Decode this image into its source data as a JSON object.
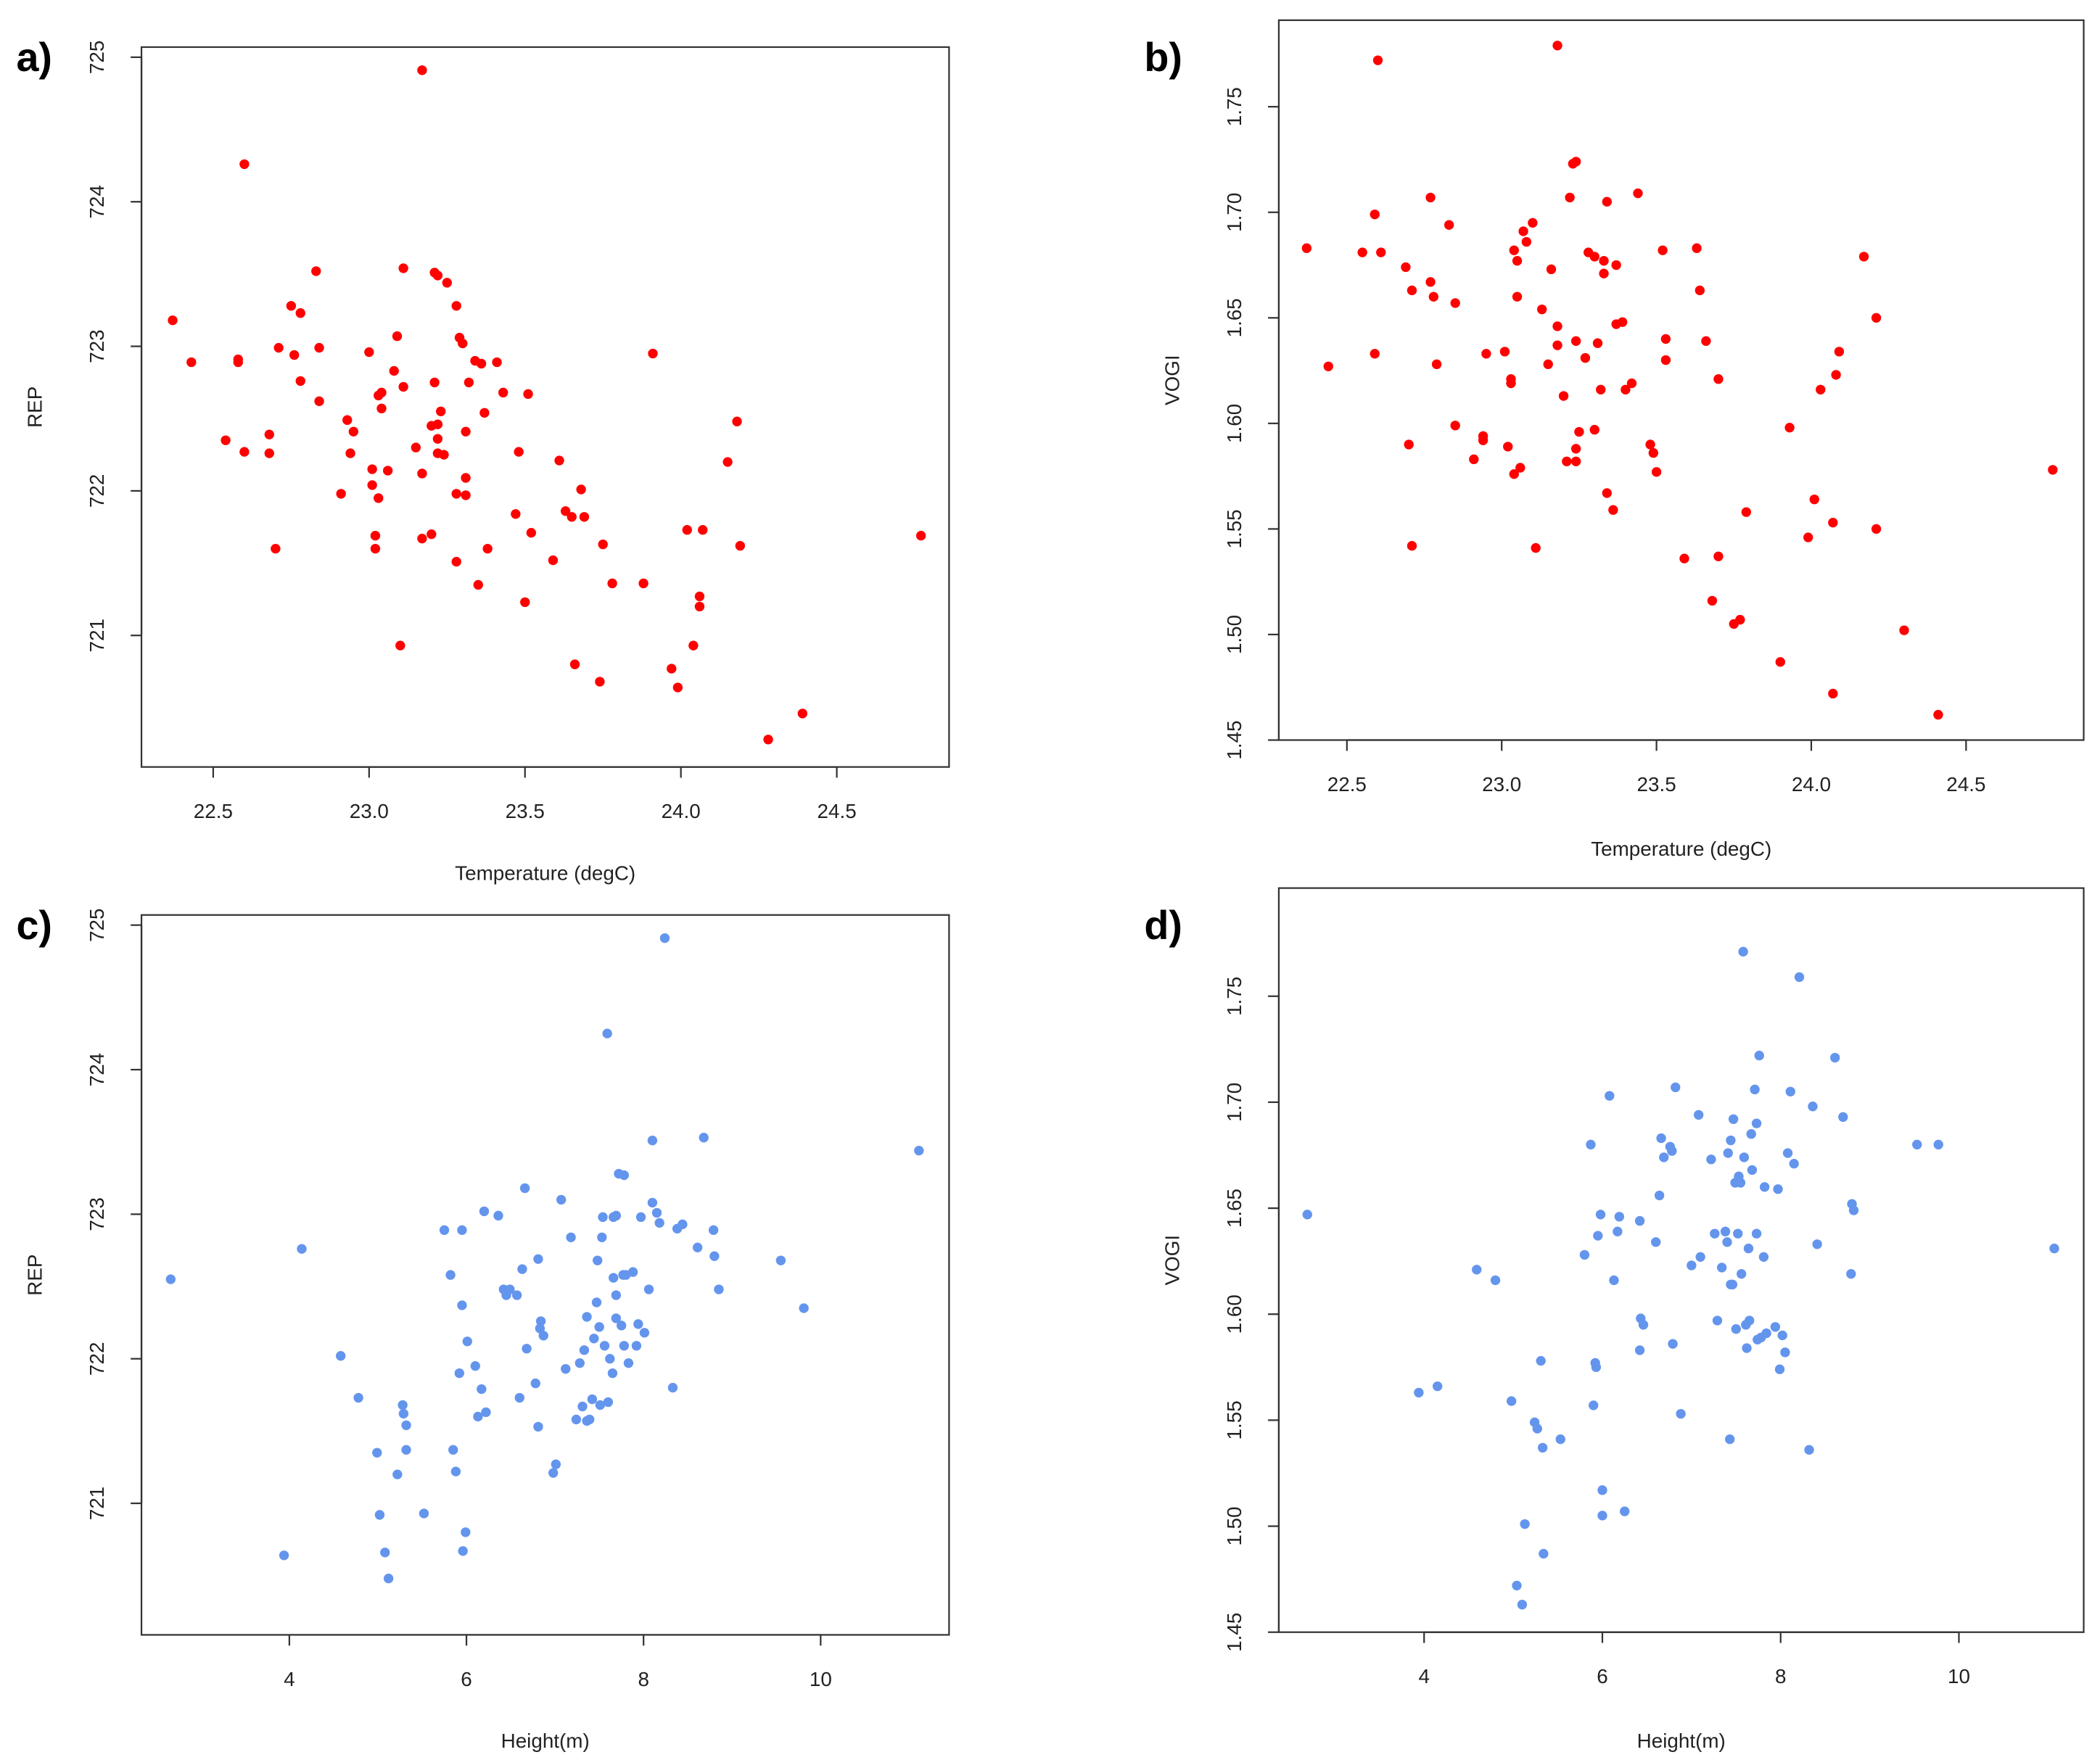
{
  "chart_data": [
    {
      "type": "scatter",
      "panel_label": "a)",
      "xlabel": "Temperature (degC)",
      "ylabel": "REP",
      "color": "#ff0000",
      "xlim": [
        22.27,
        24.86
      ],
      "ylim": [
        720.09,
        725.07
      ],
      "xticks": [
        22.5,
        {
          "value": 23,
          "label": "23.0"
        },
        23.5,
        {
          "value": 24,
          "label": "24.0"
        },
        24.5
      ],
      "yticks": [
        721,
        722,
        723,
        724,
        725
      ],
      "x": [
        22.37,
        22.43,
        22.54,
        22.58,
        22.58,
        22.6,
        22.6,
        22.68,
        22.68,
        22.71,
        22.7,
        22.75,
        22.76,
        22.78,
        22.78,
        22.83,
        22.84,
        22.84,
        22.91,
        22.93,
        22.95,
        22.94,
        23.0,
        23.01,
        23.01,
        23.02,
        23.02,
        23.03,
        23.03,
        23.04,
        23.04,
        23.06,
        23.08,
        23.09,
        23.1,
        23.11,
        23.11,
        23.15,
        23.17,
        23.17,
        23.17,
        23.2,
        23.2,
        23.21,
        23.21,
        23.22,
        23.22,
        23.22,
        23.22,
        23.23,
        23.24,
        23.25,
        23.28,
        23.28,
        23.28,
        23.29,
        23.3,
        23.31,
        23.31,
        23.31,
        23.32,
        23.34,
        23.35,
        23.36,
        23.37,
        23.38,
        23.41,
        23.43,
        23.48,
        23.47,
        23.5,
        23.51,
        23.52,
        23.59,
        23.61,
        23.63,
        23.65,
        23.66,
        23.68,
        23.69,
        23.74,
        23.75,
        23.78,
        23.88,
        23.91,
        23.97,
        23.99,
        24.02,
        24.04,
        24.06,
        24.06,
        24.07,
        24.15,
        24.18,
        24.19,
        24.28,
        24.39,
        24.77
      ],
      "values": [
        723.18,
        722.89,
        722.35,
        722.91,
        722.89,
        724.26,
        722.27,
        722.39,
        722.26,
        722.99,
        721.6,
        723.28,
        722.94,
        722.76,
        723.23,
        723.52,
        722.99,
        722.62,
        721.98,
        722.49,
        722.41,
        722.26,
        722.96,
        722.15,
        722.04,
        721.69,
        721.6,
        722.66,
        721.95,
        722.68,
        722.57,
        722.14,
        722.83,
        723.07,
        720.93,
        722.72,
        723.54,
        722.3,
        722.12,
        721.67,
        724.91,
        722.45,
        721.7,
        722.75,
        723.51,
        722.46,
        723.49,
        722.36,
        722.26,
        722.55,
        722.25,
        723.44,
        723.28,
        721.51,
        721.98,
        723.06,
        723.02,
        722.09,
        722.41,
        721.97,
        722.75,
        722.9,
        721.35,
        722.88,
        722.54,
        721.6,
        722.89,
        722.68,
        722.27,
        721.84,
        721.23,
        722.67,
        721.71,
        721.52,
        722.21,
        721.86,
        721.82,
        720.8,
        722.01,
        721.82,
        720.68,
        721.63,
        721.36,
        721.36,
        722.95,
        720.77,
        720.64,
        721.73,
        720.93,
        721.2,
        721.27,
        721.73,
        722.2,
        722.48,
        721.62,
        720.28,
        720.46,
        721.69
      ]
    },
    {
      "type": "scatter",
      "panel_label": "b)",
      "xlabel": "Temperature (degC)",
      "ylabel": "VOGI",
      "color": "#ff0000",
      "xlim": [
        22.28,
        24.88
      ],
      "ylim": [
        1.45,
        1.791
      ],
      "xticks": [
        22.5,
        {
          "value": 23,
          "label": "23.0"
        },
        23.5,
        {
          "value": 24,
          "label": "24.0"
        },
        24.5
      ],
      "yticks": [
        1.45,
        {
          "value": 1.5,
          "label": "1.50"
        },
        1.55,
        {
          "value": 1.6,
          "label": "1.60"
        },
        1.65,
        {
          "value": 1.7,
          "label": "1.70"
        },
        1.75
      ],
      "x": [
        22.37,
        22.44,
        22.55,
        22.59,
        22.6,
        22.59,
        22.61,
        22.69,
        22.7,
        22.71,
        22.71,
        22.77,
        22.77,
        22.78,
        22.79,
        22.83,
        22.85,
        22.85,
        22.91,
        22.94,
        22.95,
        22.94,
        23.01,
        23.02,
        23.03,
        23.03,
        23.04,
        23.04,
        23.05,
        23.05,
        23.07,
        23.06,
        23.08,
        23.1,
        23.11,
        23.13,
        23.15,
        23.16,
        23.18,
        23.18,
        23.18,
        23.2,
        23.21,
        23.22,
        23.23,
        23.24,
        23.24,
        23.24,
        23.25,
        23.24,
        23.27,
        23.28,
        23.3,
        23.3,
        23.31,
        23.32,
        23.33,
        23.33,
        23.34,
        23.34,
        23.36,
        23.37,
        23.37,
        23.39,
        23.4,
        23.42,
        23.44,
        23.48,
        23.49,
        23.5,
        23.52,
        23.53,
        23.53,
        23.59,
        23.63,
        23.64,
        23.66,
        23.68,
        23.7,
        23.7,
        23.75,
        23.77,
        23.79,
        23.9,
        23.93,
        23.99,
        24.01,
        24.03,
        24.07,
        24.08,
        24.09,
        24.07,
        24.17,
        24.21,
        24.21,
        24.3,
        24.41,
        24.78
      ],
      "values": [
        1.683,
        1.627,
        1.681,
        1.699,
        1.772,
        1.633,
        1.681,
        1.674,
        1.59,
        1.542,
        1.663,
        1.707,
        1.667,
        1.66,
        1.628,
        1.694,
        1.657,
        1.599,
        1.583,
        1.594,
        1.633,
        1.592,
        1.634,
        1.589,
        1.621,
        1.619,
        1.576,
        1.682,
        1.66,
        1.677,
        1.691,
        1.579,
        1.686,
        1.695,
        1.541,
        1.654,
        1.628,
        1.673,
        1.646,
        1.779,
        1.637,
        1.613,
        1.582,
        1.707,
        1.723,
        1.724,
        1.582,
        1.639,
        1.596,
        1.588,
        1.631,
        1.681,
        1.597,
        1.679,
        1.638,
        1.616,
        1.677,
        1.671,
        1.705,
        1.567,
        1.559,
        1.647,
        1.675,
        1.648,
        1.616,
        1.619,
        1.709,
        1.59,
        1.586,
        1.577,
        1.682,
        1.63,
        1.64,
        1.536,
        1.683,
        1.663,
        1.639,
        1.516,
        1.621,
        1.537,
        1.505,
        1.507,
        1.558,
        1.487,
        1.598,
        1.546,
        1.564,
        1.616,
        1.553,
        1.623,
        1.634,
        1.472,
        1.679,
        1.65,
        1.55,
        1.502,
        1.462,
        1.578
      ]
    },
    {
      "type": "scatter",
      "panel_label": "c)",
      "xlabel": "Height(m)",
      "ylabel": "REP",
      "color": "#6495ed",
      "xlim": [
        2.33,
        11.45
      ],
      "ylim": [
        720.09,
        725.07
      ],
      "xticks": [
        4,
        6,
        8,
        10
      ],
      "yticks": [
        721,
        722,
        723,
        724,
        725
      ],
      "x": [
        2.66,
        3.94,
        4.14,
        4.58,
        4.78,
        4.99,
        5.02,
        5.08,
        5.12,
        5.22,
        5.28,
        5.29,
        5.32,
        5.32,
        5.52,
        5.75,
        5.82,
        5.85,
        5.88,
        5.92,
        5.95,
        5.96,
        5.99,
        5.95,
        6.01,
        6.1,
        6.13,
        6.17,
        6.2,
        6.22,
        6.36,
        6.42,
        6.45,
        6.49,
        6.57,
        6.6,
        6.63,
        6.66,
        6.68,
        6.78,
        6.81,
        6.81,
        6.84,
        6.83,
        6.87,
        6.98,
        7.01,
        7.07,
        7.12,
        7.18,
        7.24,
        7.28,
        7.31,
        7.33,
        7.36,
        7.36,
        7.39,
        7.42,
        7.44,
        7.47,
        7.48,
        7.5,
        7.51,
        7.53,
        7.54,
        7.56,
        7.59,
        7.6,
        7.62,
        7.65,
        7.66,
        7.66,
        7.69,
        7.69,
        7.69,
        7.72,
        7.75,
        7.77,
        7.78,
        7.78,
        7.8,
        7.83,
        7.88,
        7.92,
        7.94,
        7.97,
        8.01,
        8.06,
        8.1,
        8.1,
        8.15,
        8.18,
        8.24,
        8.33,
        8.38,
        8.44,
        8.61,
        8.68,
        8.79,
        8.8,
        8.85,
        9.55,
        9.81,
        11.11
      ],
      "values": [
        722.55,
        720.64,
        722.76,
        722.02,
        721.73,
        721.35,
        720.92,
        720.66,
        720.48,
        721.2,
        721.68,
        721.62,
        721.54,
        721.37,
        720.93,
        722.89,
        722.58,
        721.37,
        721.22,
        721.9,
        722.37,
        720.67,
        720.8,
        722.89,
        722.12,
        721.95,
        721.6,
        721.79,
        723.02,
        721.63,
        722.99,
        722.48,
        722.44,
        722.48,
        722.44,
        721.73,
        722.62,
        723.18,
        722.07,
        721.83,
        721.53,
        722.69,
        722.26,
        722.21,
        722.16,
        721.21,
        721.27,
        723.1,
        721.93,
        722.84,
        721.58,
        721.97,
        721.67,
        722.06,
        721.57,
        722.29,
        721.58,
        721.72,
        722.14,
        722.39,
        722.68,
        722.22,
        721.68,
        722.84,
        722.98,
        722.09,
        724.25,
        721.7,
        722.0,
        721.9,
        722.98,
        722.56,
        722.44,
        722.99,
        722.28,
        723.28,
        722.23,
        722.58,
        722.09,
        723.27,
        722.58,
        721.97,
        722.6,
        722.09,
        722.24,
        722.98,
        722.18,
        722.48,
        723.08,
        723.51,
        723.01,
        722.94,
        724.91,
        721.8,
        722.9,
        722.93,
        722.77,
        723.53,
        722.89,
        722.71,
        722.48,
        722.68,
        722.35,
        723.44
      ]
    },
    {
      "type": "scatter",
      "panel_label": "d)",
      "xlabel": "Height(m)",
      "ylabel": "VOGI",
      "color": "#6495ed",
      "xlim": [
        2.37,
        11.4
      ],
      "ylim": [
        1.45,
        1.801
      ],
      "xticks": [
        4,
        6,
        8,
        10
      ],
      "yticks": [
        1.45,
        {
          "value": 1.5,
          "label": "1.50"
        },
        1.55,
        {
          "value": 1.6,
          "label": "1.60"
        },
        1.65,
        {
          "value": 1.7,
          "label": "1.70"
        },
        1.75
      ],
      "x": [
        2.69,
        3.94,
        4.15,
        4.59,
        4.8,
        4.98,
        5.13,
        5.04,
        5.1,
        5.24,
        5.27,
        5.31,
        5.33,
        5.34,
        5.53,
        5.8,
        5.87,
        5.9,
        5.92,
        5.93,
        5.95,
        5.98,
        6.0,
        6.0,
        6.08,
        6.13,
        6.17,
        6.19,
        6.25,
        6.42,
        6.43,
        6.42,
        6.46,
        6.6,
        6.64,
        6.66,
        6.69,
        6.76,
        6.78,
        6.79,
        6.82,
        6.88,
        7.0,
        7.08,
        7.1,
        7.22,
        7.26,
        7.29,
        7.34,
        7.38,
        7.4,
        7.41,
        7.44,
        7.43,
        7.44,
        7.46,
        7.47,
        7.49,
        7.5,
        7.52,
        7.53,
        7.55,
        7.56,
        7.58,
        7.59,
        7.61,
        7.62,
        7.64,
        7.65,
        7.67,
        7.68,
        7.71,
        7.73,
        7.73,
        7.74,
        7.76,
        7.78,
        7.81,
        7.82,
        7.84,
        7.94,
        7.97,
        7.99,
        8.02,
        8.05,
        8.08,
        8.11,
        8.15,
        8.21,
        8.32,
        8.36,
        8.41,
        8.61,
        8.7,
        8.79,
        8.8,
        8.82,
        9.53,
        9.77,
        11.07
      ],
      "values": [
        1.647,
        1.563,
        1.566,
        1.621,
        1.616,
        1.559,
        1.501,
        1.472,
        1.463,
        1.549,
        1.546,
        1.578,
        1.537,
        1.487,
        1.541,
        1.628,
        1.68,
        1.557,
        1.577,
        1.575,
        1.637,
        1.647,
        1.505,
        1.517,
        1.703,
        1.616,
        1.639,
        1.646,
        1.507,
        1.583,
        1.598,
        1.644,
        1.595,
        1.634,
        1.656,
        1.683,
        1.674,
        1.679,
        1.677,
        1.586,
        1.707,
        1.553,
        1.623,
        1.694,
        1.627,
        1.673,
        1.638,
        1.597,
        1.622,
        1.639,
        1.634,
        1.676,
        1.682,
        1.541,
        1.614,
        1.614,
        1.692,
        1.662,
        1.593,
        1.638,
        1.665,
        1.662,
        1.619,
        1.771,
        1.674,
        1.595,
        1.584,
        1.631,
        1.597,
        1.685,
        1.668,
        1.706,
        1.69,
        1.638,
        1.588,
        1.722,
        1.589,
        1.627,
        1.66,
        1.591,
        1.594,
        1.659,
        1.574,
        1.59,
        1.582,
        1.676,
        1.705,
        1.671,
        1.759,
        1.536,
        1.698,
        1.633,
        1.721,
        1.693,
        1.619,
        1.652,
        1.649,
        1.68,
        1.68,
        1.631
      ]
    }
  ]
}
